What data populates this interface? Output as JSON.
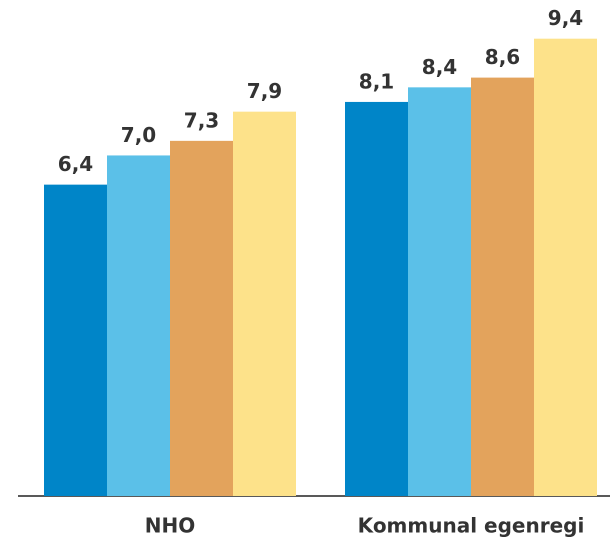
{
  "chart_data": {
    "type": "bar",
    "categories": [
      "NHO",
      "Kommunal egenregi"
    ],
    "series": [
      {
        "color": "#0085c8",
        "values": [
          6.4,
          8.1
        ],
        "value_labels": [
          "6,4",
          "8,1"
        ]
      },
      {
        "color": "#5bc0e8",
        "values": [
          7.0,
          8.4
        ],
        "value_labels": [
          "7,0",
          "8,4"
        ]
      },
      {
        "color": "#e3a35c",
        "values": [
          7.3,
          8.6
        ],
        "value_labels": [
          "7,3",
          "8,6"
        ]
      },
      {
        "color": "#fde28a",
        "values": [
          7.9,
          9.4
        ],
        "value_labels": [
          "7,9",
          "9,4"
        ]
      }
    ]
  }
}
